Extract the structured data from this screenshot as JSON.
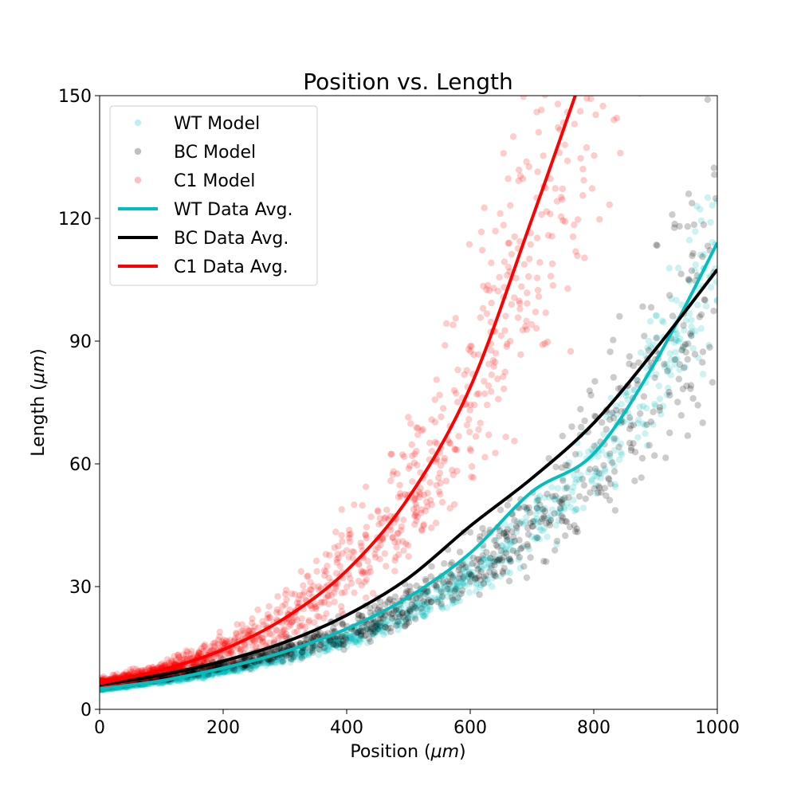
{
  "chart_data": {
    "type": "scatter",
    "title": "Position vs. Length",
    "xlabel": "Position (",
    "xlabel_unit": "μm",
    "xlabel_close": ")",
    "ylabel": "Length (",
    "ylabel_unit": "μm",
    "ylabel_close": ")",
    "xlim": [
      0,
      1000
    ],
    "ylim": [
      0,
      150
    ],
    "xticks": [
      0,
      200,
      400,
      600,
      800,
      1000
    ],
    "yticks": [
      0,
      30,
      60,
      90,
      120,
      150
    ],
    "grid": false,
    "legend_position": "top-left",
    "scatter_series": [
      {
        "name": "WT Model",
        "color": "#00bfbf",
        "opacity": 0.2,
        "count": 1200,
        "a": 5.0,
        "k": 0.0031,
        "spread": 0.12,
        "seed": 11
      },
      {
        "name": "BC Model",
        "color": "#000000",
        "opacity": 0.2,
        "count": 1200,
        "a": 6.0,
        "k": 0.0029,
        "spread": 0.2,
        "seed": 23
      },
      {
        "name": "C1 Model",
        "color": "#ff0000",
        "opacity": 0.2,
        "count": 1400,
        "a": 6.3,
        "k": 0.0042,
        "spread": 0.3,
        "seed": 37
      }
    ],
    "line_series": [
      {
        "name": "WT Data Avg.",
        "color": "#00bfbf",
        "x": [
          0,
          100,
          200,
          300,
          400,
          500,
          600,
          700,
          800,
          900,
          1000
        ],
        "y": [
          5.0,
          7.0,
          10.1,
          14.1,
          19.7,
          27.4,
          38.2,
          53.2,
          62.5,
          85.0,
          114.0
        ]
      },
      {
        "name": "BC Data Avg.",
        "color": "#000000",
        "x": [
          0,
          100,
          200,
          300,
          400,
          500,
          600,
          700,
          800,
          900,
          1000
        ],
        "y": [
          6.0,
          8.4,
          11.8,
          16.4,
          23.0,
          32.1,
          44.8,
          56.5,
          70.0,
          88.0,
          107.5
        ]
      },
      {
        "name": "C1 Data Avg.",
        "color": "#ff0000",
        "x": [
          0,
          100,
          200,
          300,
          400,
          500,
          600,
          700,
          770
        ],
        "y": [
          6.3,
          9.6,
          14.6,
          22.3,
          33.9,
          51.7,
          78.7,
          119.9,
          150.0
        ]
      }
    ]
  }
}
